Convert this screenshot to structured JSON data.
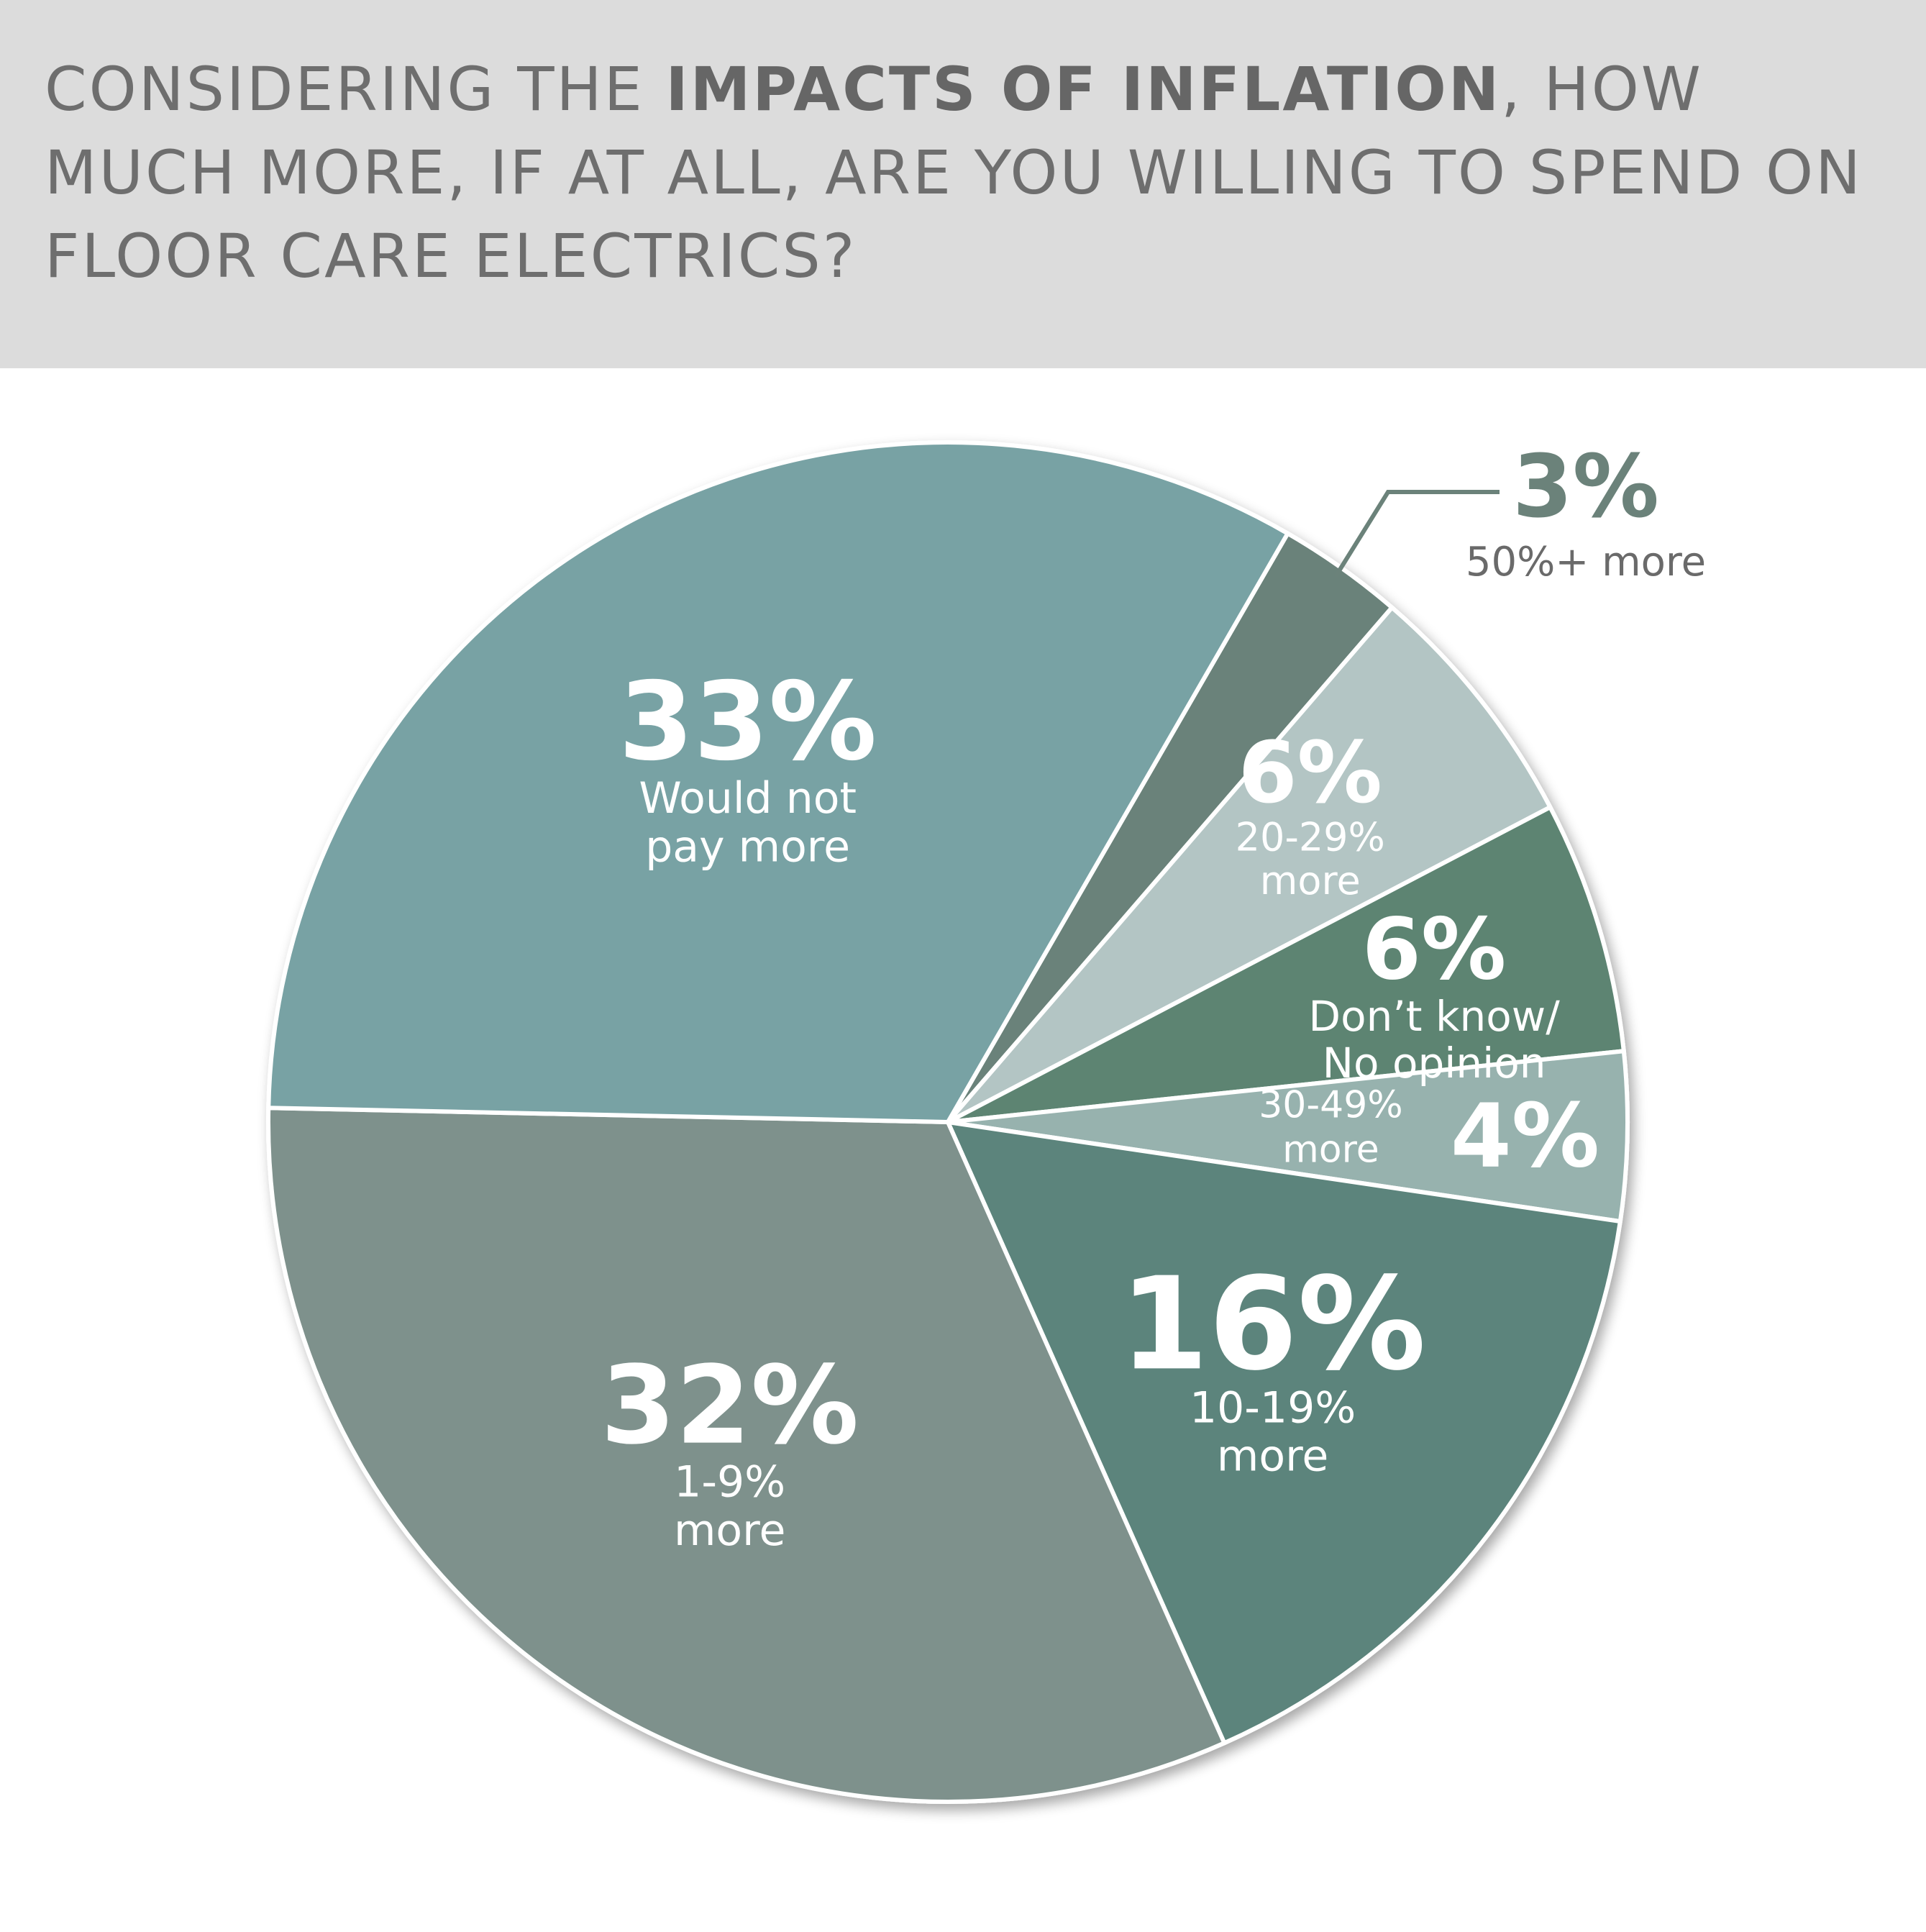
{
  "title": {
    "part1": "CONSIDERING THE ",
    "bold": "IMPACTS OF INFLATION",
    "part2": ", HOW MUCH MORE, IF AT ALL, ARE YOU WILLING TO SPEND ON FLOOR CARE ELECTRICS?"
  },
  "chart_data": {
    "type": "pie",
    "title": "CONSIDERING THE IMPACTS OF INFLATION, HOW MUCH MORE, IF AT ALL, ARE YOU WILLING TO SPEND ON FLOOR CARE ELECTRICS?",
    "unit": "%",
    "slices": [
      {
        "label_lines": [
          "50%+ more"
        ],
        "value_text": "3%",
        "value": 3,
        "color": "#6b827a",
        "label_inside": false
      },
      {
        "label_lines": [
          "20-29%",
          "more"
        ],
        "value_text": "6%",
        "value": 6,
        "color": "#b3c5c4",
        "label_inside": true
      },
      {
        "label_lines": [
          "Don’t know/",
          "No opinion"
        ],
        "value_text": "6%",
        "value": 6,
        "color": "#5d8472",
        "label_inside": true
      },
      {
        "label_lines": [
          "30-49%",
          "more"
        ],
        "value_text": "4%",
        "value": 4,
        "color": "#97b2ae",
        "label_inside": true
      },
      {
        "label_lines": [
          "10-19%",
          "more"
        ],
        "value_text": "16%",
        "value": 16,
        "color": "#5c847b",
        "label_inside": true
      },
      {
        "label_lines": [
          "1-9%",
          "more"
        ],
        "value_text": "32%",
        "value": 32,
        "color": "#7e918c",
        "label_inside": true
      },
      {
        "label_lines": [
          "Would not",
          "pay more"
        ],
        "value_text": "33%",
        "value": 33,
        "color": "#78a2a4",
        "label_inside": true
      }
    ]
  }
}
